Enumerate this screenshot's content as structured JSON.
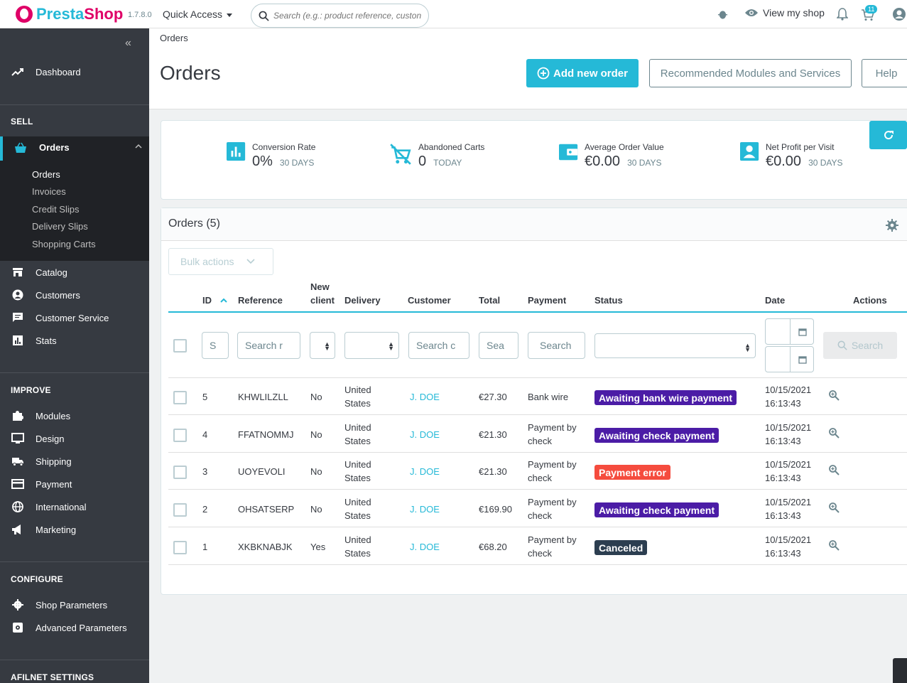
{
  "topbar": {
    "brand_a": "Presta",
    "brand_b": "Shop",
    "version": "1.7.8.0",
    "quick_access": "Quick Access",
    "search_placeholder": "Search (e.g.: product reference, custon",
    "view_shop": "View my shop",
    "cart_badge": "11"
  },
  "sidebar": {
    "dashboard": "Dashboard",
    "sell": "SELL",
    "orders": "Orders",
    "sub": [
      "Orders",
      "Invoices",
      "Credit Slips",
      "Delivery Slips",
      "Shopping Carts"
    ],
    "catalog": "Catalog",
    "customers": "Customers",
    "customer_service": "Customer Service",
    "stats": "Stats",
    "improve": "IMPROVE",
    "modules": "Modules",
    "design": "Design",
    "shipping": "Shipping",
    "payment": "Payment",
    "international": "International",
    "marketing": "Marketing",
    "configure": "CONFIGURE",
    "shop_parameters": "Shop Parameters",
    "advanced_parameters": "Advanced Parameters",
    "afilnet": "AFILNET SETTINGS"
  },
  "header": {
    "breadcrumb": "Orders",
    "title": "Orders",
    "add_order": "Add new order",
    "recommended": "Recommended Modules and Services",
    "help": "Help"
  },
  "kpis": [
    {
      "label": "Conversion Rate",
      "value": "0%",
      "period": "30 DAYS"
    },
    {
      "label": "Abandoned Carts",
      "value": "0",
      "period": "TODAY"
    },
    {
      "label": "Average Order Value",
      "value": "€0.00",
      "period": "30 DAYS"
    },
    {
      "label": "Net Profit per Visit",
      "value": "€0.00",
      "period": "30 DAYS"
    }
  ],
  "grid": {
    "title": "Orders (5)",
    "bulk_actions": "Bulk actions",
    "columns": {
      "id": "ID",
      "reference": "Reference",
      "new_client_1": "New",
      "new_client_2": "client",
      "delivery": "Delivery",
      "customer": "Customer",
      "total": "Total",
      "payment": "Payment",
      "status": "Status",
      "date": "Date",
      "actions": "Actions"
    },
    "filters": {
      "id": "S",
      "reference": "Search r",
      "customer": "Search c",
      "total": "Sea",
      "payment": "Search",
      "search_button": "Search"
    },
    "rows": [
      {
        "id": "5",
        "reference": "KHWLILZLL",
        "new_client": "No",
        "delivery_1": "United",
        "delivery_2": "States",
        "customer": "J. DOE",
        "total": "€27.30",
        "payment_1": "Bank wire",
        "payment_2": "",
        "status": "Awaiting bank wire payment",
        "status_color": "#4b1ca6",
        "date_1": "10/15/2021",
        "date_2": "16:13:43"
      },
      {
        "id": "4",
        "reference": "FFATNOMMJ",
        "new_client": "No",
        "delivery_1": "United",
        "delivery_2": "States",
        "customer": "J. DOE",
        "total": "€21.30",
        "payment_1": "Payment by",
        "payment_2": "check",
        "status": "Awaiting check payment",
        "status_color": "#4b1ca6",
        "date_1": "10/15/2021",
        "date_2": "16:13:43"
      },
      {
        "id": "3",
        "reference": "UOYEVOLI",
        "new_client": "No",
        "delivery_1": "United",
        "delivery_2": "States",
        "customer": "J. DOE",
        "total": "€21.30",
        "payment_1": "Payment by",
        "payment_2": "check",
        "status": "Payment error",
        "status_color": "#f54c3e",
        "date_1": "10/15/2021",
        "date_2": "16:13:43"
      },
      {
        "id": "2",
        "reference": "OHSATSERP",
        "new_client": "No",
        "delivery_1": "United",
        "delivery_2": "States",
        "customer": "J. DOE",
        "total": "€169.90",
        "payment_1": "Payment by",
        "payment_2": "check",
        "status": "Awaiting check payment",
        "status_color": "#4b1ca6",
        "date_1": "10/15/2021",
        "date_2": "16:13:43"
      },
      {
        "id": "1",
        "reference": "XKBKNABJK",
        "new_client": "Yes",
        "delivery_1": "United",
        "delivery_2": "States",
        "customer": "J. DOE",
        "total": "€68.20",
        "payment_1": "Payment by",
        "payment_2": "check",
        "status": "Canceled",
        "status_color": "#2c3e50",
        "date_1": "10/15/2021",
        "date_2": "16:13:43"
      }
    ]
  }
}
